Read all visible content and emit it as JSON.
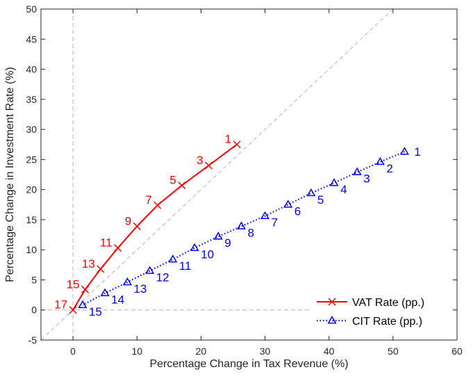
{
  "chart_data": {
    "type": "line",
    "title": "",
    "xlabel": "Percentage Change in Tax Revenue (%)",
    "ylabel": "Percentage Change in Investment Rate (%)",
    "xlim": [
      -5,
      60
    ],
    "ylim": [
      -5,
      50
    ],
    "xticks": [
      0,
      10,
      20,
      30,
      40,
      50,
      60
    ],
    "yticks": [
      -5,
      0,
      5,
      10,
      15,
      20,
      25,
      30,
      35,
      40,
      45,
      50
    ],
    "grid": false,
    "legend_position": "bottom-right",
    "reference_lines": [
      "x = 0",
      "y = 0",
      "y = x"
    ],
    "series": [
      {
        "name": "VAT Rate (pp.)",
        "color": "#ff0000",
        "line_style": "solid",
        "marker": "x",
        "x": [
          25.6,
          21.2,
          17.0,
          13.2,
          10.0,
          7.0,
          4.3,
          1.9,
          0
        ],
        "y": [
          27.5,
          24.0,
          20.7,
          17.4,
          13.9,
          10.3,
          6.8,
          3.4,
          0
        ],
        "labels": [
          "1",
          "3",
          "5",
          "7",
          "9",
          "11",
          "13",
          "15",
          "17"
        ]
      },
      {
        "name": "CIT Rate (pp.)",
        "color": "#0000ff",
        "line_style": "dotted",
        "marker": "triangle",
        "x": [
          51.8,
          48.0,
          44.4,
          40.8,
          37.2,
          33.6,
          30.0,
          26.3,
          22.7,
          19.0,
          15.6,
          12.0,
          8.5,
          5.0,
          1.5
        ],
        "y": [
          26.3,
          24.6,
          22.9,
          21.1,
          19.4,
          17.5,
          15.6,
          13.9,
          12.2,
          10.3,
          8.4,
          6.5,
          4.6,
          2.8,
          0.8
        ],
        "labels": [
          "1",
          "2",
          "3",
          "4",
          "5",
          "6",
          "7",
          "8",
          "9",
          "10",
          "11",
          "12",
          "13",
          "14",
          "15"
        ]
      }
    ]
  }
}
